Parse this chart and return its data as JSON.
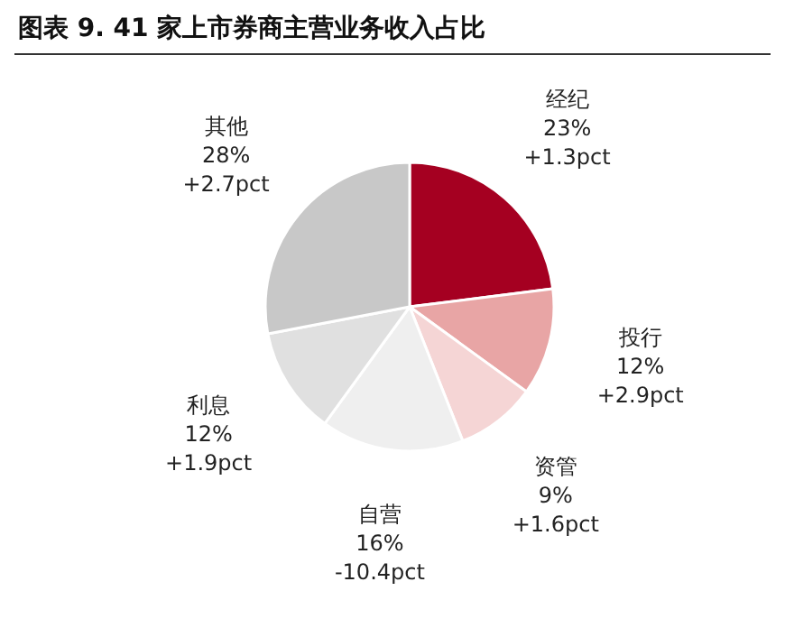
{
  "chart_data": {
    "type": "pie",
    "title": "图表 9. 41 家上市券商主营业务收入占比",
    "categories": [
      "经纪",
      "投行",
      "资管",
      "自营",
      "利息",
      "其他"
    ],
    "values": [
      23,
      12,
      9,
      16,
      12,
      28
    ],
    "colors": [
      "#a50021",
      "#e8a5a5",
      "#f5d5d5",
      "#efefef",
      "#e0e0e0",
      "#c8c8c8"
    ],
    "value_labels": [
      "23%",
      "12%",
      "9%",
      "16%",
      "12%",
      "28%"
    ],
    "annotations": [
      "+1.3pct",
      "+2.9pct",
      "+1.6pct",
      "-10.4pct",
      "+1.9pct",
      "+2.7pct"
    ]
  }
}
